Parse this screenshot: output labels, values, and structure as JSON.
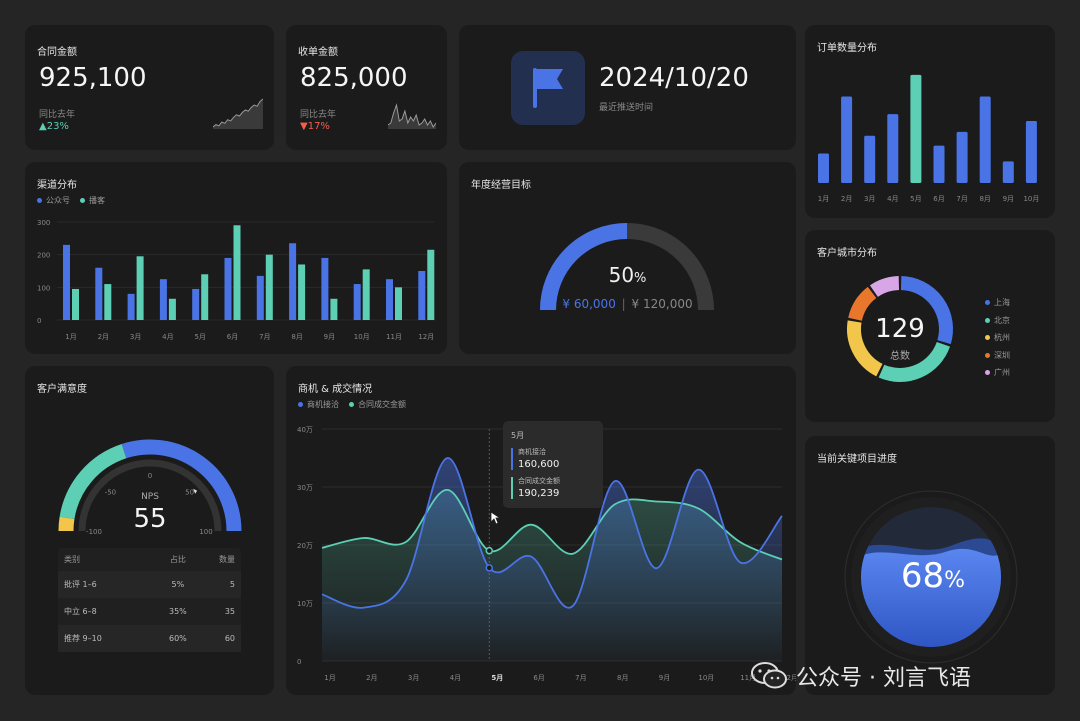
{
  "contract": {
    "title": "合同金额",
    "value": "925,100",
    "yoy_label": "同比去年",
    "change": "23%",
    "trend": [
      8,
      10,
      9,
      12,
      11,
      14,
      13,
      16,
      18,
      17,
      20,
      22,
      21,
      24,
      26,
      25,
      29,
      31
    ]
  },
  "payment": {
    "title": "收单金额",
    "value": "825,000",
    "yoy_label": "同比去年",
    "change": "17%",
    "trend": [
      12,
      13,
      18,
      22,
      14,
      15,
      19,
      13,
      16,
      14,
      17,
      12,
      13,
      15,
      12,
      14,
      11,
      13
    ]
  },
  "push": {
    "date": "2024/10/20",
    "label": "最近推送时间",
    "icon": "flag-icon"
  },
  "orders": {
    "title": "订单数量分布",
    "categories": [
      "1月",
      "2月",
      "3月",
      "4月",
      "5月",
      "6月",
      "7月",
      "8月",
      "9月",
      "10月"
    ],
    "values": [
      30,
      88,
      48,
      70,
      110,
      38,
      52,
      88,
      22,
      63
    ],
    "highlight_index": 4
  },
  "channel": {
    "title": "渠道分布",
    "legend": [
      "公众号",
      "播客"
    ]
  },
  "goal": {
    "title": "年度经营目标",
    "percent_value": "50",
    "percent_sign": "%",
    "current": "¥ 60,000",
    "separator": "|",
    "target": "¥ 120,000",
    "progress": 0.5
  },
  "city": {
    "title": "客户城市分布",
    "total": "129",
    "total_label": "总数",
    "legend": [
      "上海",
      "北京",
      "杭州",
      "深圳",
      "广州"
    ],
    "shares": [
      0.3,
      0.27,
      0.21,
      0.12,
      0.1
    ]
  },
  "satisfaction": {
    "title": "客户满意度",
    "nps_label": "NPS",
    "nps_value": "55",
    "ticks": [
      "-100",
      "-50",
      "0",
      "50",
      "100"
    ],
    "table": {
      "headers": [
        "类别",
        "占比",
        "数量"
      ],
      "rows": [
        [
          "批评 1–6",
          "5%",
          "5"
        ],
        [
          "中立 6–8",
          "35%",
          "35"
        ],
        [
          "推荐 9–10",
          "60%",
          "60"
        ]
      ]
    }
  },
  "opportunity": {
    "title": "商机 & 成交情况",
    "legend": [
      "商机接洽",
      "合同成交金额"
    ],
    "y_ticks": [
      "40万",
      "30万",
      "20万",
      "10万",
      "0"
    ],
    "tooltip": {
      "month": "5月",
      "s1_label": "商机接洽",
      "s1_value": "160,600",
      "s2_label": "合同成交金额",
      "s2_value": "190,239"
    }
  },
  "project": {
    "title": "当前关键项目进度",
    "percent_value": "68",
    "percent_sign": "%",
    "progress": 0.68
  },
  "watermark": "公众号 · 刘言飞语",
  "colors": {
    "blue": "#4a74e6",
    "teal": "#5ccfb4",
    "yellow": "#f2c64b",
    "orange": "#e8772e",
    "pink": "#d8a6e6",
    "red": "#f2604a"
  },
  "chart_data": [
    {
      "type": "bar",
      "title": "渠道分布",
      "categories": [
        "1月",
        "2月",
        "3月",
        "4月",
        "5月",
        "6月",
        "7月",
        "8月",
        "9月",
        "10月",
        "11月",
        "12月"
      ],
      "series": [
        {
          "name": "公众号",
          "values": [
            230,
            160,
            80,
            125,
            95,
            190,
            135,
            235,
            190,
            110,
            125,
            150
          ]
        },
        {
          "name": "播客",
          "values": [
            95,
            110,
            195,
            65,
            140,
            290,
            200,
            170,
            65,
            155,
            100,
            215
          ]
        }
      ],
      "ylim": [
        0,
        300
      ],
      "y_ticks": [
        "0",
        "100",
        "200",
        "300"
      ]
    },
    {
      "type": "line",
      "title": "商机 & 成交情况",
      "categories": [
        "1月",
        "2月",
        "3月",
        "4月",
        "5月",
        "6月",
        "7月",
        "8月",
        "9月",
        "10月",
        "11月",
        "12月"
      ],
      "series": [
        {
          "name": "商机接洽",
          "values": [
            11.5,
            9.2,
            13.8,
            35,
            16.06,
            18,
            9.5,
            31,
            16,
            33,
            17,
            25
          ]
        },
        {
          "name": "合同成交金额",
          "values": [
            19.5,
            21.2,
            20.5,
            29.5,
            19.02,
            23.5,
            18.5,
            27,
            27.5,
            26.3,
            20.5,
            17.5
          ]
        }
      ],
      "ylim": [
        0,
        40
      ],
      "y_unit": "万"
    }
  ]
}
